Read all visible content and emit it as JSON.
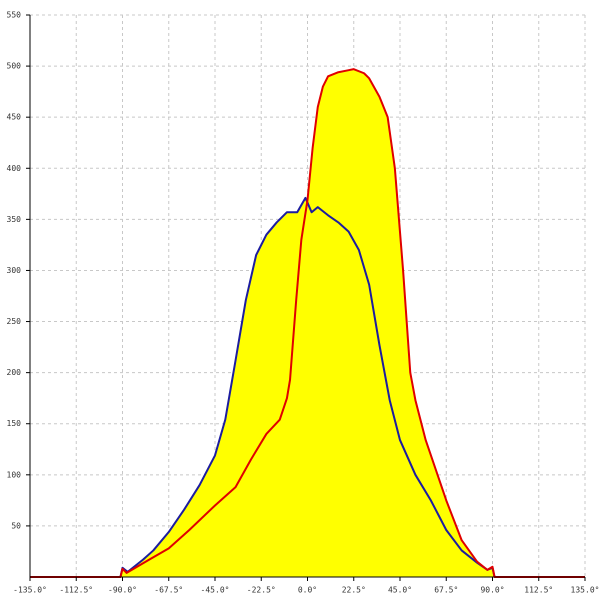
{
  "chart_data": {
    "type": "line",
    "xlim": [
      -135,
      135
    ],
    "ylim": [
      0,
      550
    ],
    "xticks": [
      {
        "value": -135,
        "label": "-135.0°"
      },
      {
        "value": -112.5,
        "label": "-112.5°"
      },
      {
        "value": -90,
        "label": "-90.0°"
      },
      {
        "value": -67.5,
        "label": "-67.5°"
      },
      {
        "value": -45,
        "label": "-45.0°"
      },
      {
        "value": -22.5,
        "label": "-22.5°"
      },
      {
        "value": 0,
        "label": "0.0°"
      },
      {
        "value": 22.5,
        "label": "22.5°"
      },
      {
        "value": 45,
        "label": "45.0°"
      },
      {
        "value": 67.5,
        "label": "67.5°"
      },
      {
        "value": 90,
        "label": "90.0°"
      },
      {
        "value": 112.5,
        "label": "112.5°"
      },
      {
        "value": 135,
        "label": "135.0°"
      }
    ],
    "yticks": [
      50,
      100,
      150,
      200,
      250,
      300,
      350,
      400,
      450,
      500,
      550
    ],
    "grid": true,
    "fill_color": "#ffff00",
    "series": [
      {
        "color": "#1c1ca0",
        "x": [
          -91,
          -90,
          -87.5,
          -80,
          -75,
          -67.5,
          -60,
          -52.5,
          -45,
          -40,
          -35,
          -30,
          -25,
          -20,
          -15,
          -10,
          -5,
          -1,
          2,
          5,
          10,
          15,
          20,
          25,
          30,
          35,
          40,
          45,
          52.5,
          60,
          67.5,
          75,
          82.5,
          87.5,
          90,
          91
        ],
        "values": [
          0,
          9,
          5,
          17,
          26,
          44,
          66,
          90,
          119,
          154,
          212,
          271,
          315,
          335,
          347,
          357,
          357,
          371,
          357,
          362,
          354,
          347,
          338,
          320,
          286,
          227,
          173,
          134,
          100,
          75,
          46,
          26,
          14,
          7,
          9,
          0
        ]
      },
      {
        "color": "#e00000",
        "x": [
          -135,
          -91,
          -90,
          -88,
          -77,
          -67.5,
          -57.5,
          -45,
          -35,
          -27.5,
          -20,
          -13.5,
          -10,
          -8.5,
          -5.5,
          -3,
          0,
          2.5,
          5,
          7.5,
          10,
          15,
          20,
          22.5,
          27.5,
          30,
          35,
          39,
          42.5,
          46.5,
          50,
          52.5,
          57.5,
          67.5,
          75,
          82.5,
          87.5,
          90,
          91,
          135
        ],
        "values": [
          0,
          0,
          8,
          4,
          17,
          28,
          46,
          70,
          88,
          115,
          140,
          154,
          175,
          193,
          271,
          330,
          369,
          420,
          460,
          480,
          490,
          494,
          496,
          497,
          493,
          488,
          470,
          450,
          400,
          300,
          200,
          173,
          134,
          75,
          36,
          15,
          7,
          10,
          0,
          0
        ]
      }
    ]
  }
}
